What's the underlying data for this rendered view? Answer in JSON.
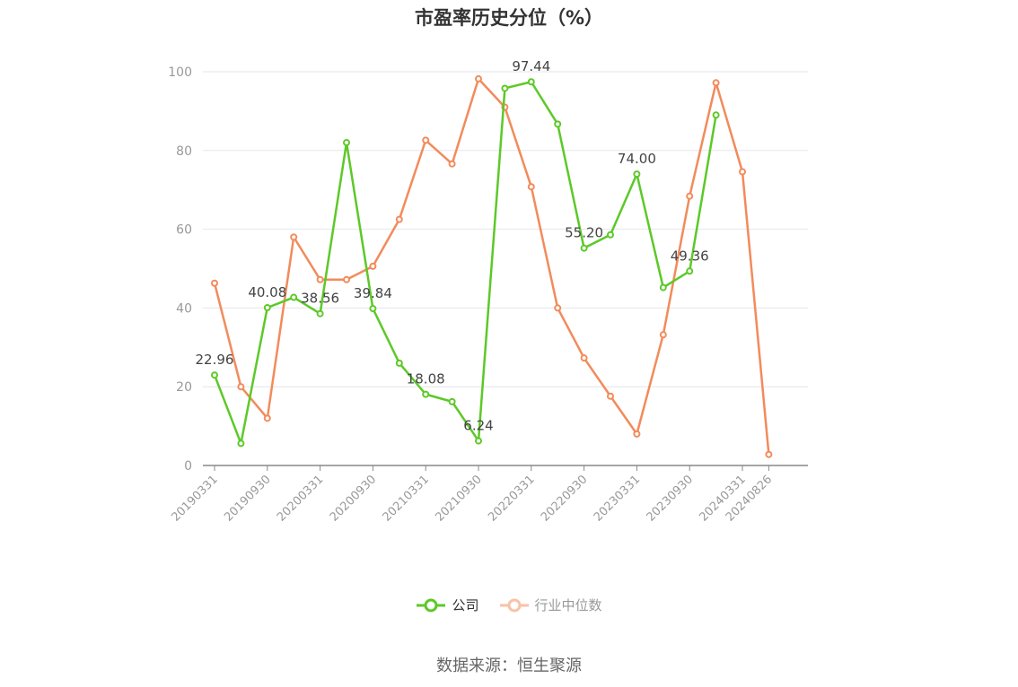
{
  "chart_data": {
    "type": "line",
    "title": "市盈率历史分位（%）",
    "ylim": [
      0,
      100
    ],
    "yticks": [
      0,
      20,
      40,
      60,
      80,
      100
    ],
    "x": [
      "20190331",
      "20190630",
      "20190930",
      "20191231",
      "20200331",
      "20200630",
      "20200930",
      "20201231",
      "20210331",
      "20210630",
      "20210930",
      "20211231",
      "20220331",
      "20220630",
      "20220930",
      "20221231",
      "20230331",
      "20230630",
      "20230930",
      "20231231",
      "20240331",
      "20240826"
    ],
    "xtick_labels": [
      "20190331",
      "20190930",
      "20200331",
      "20200930",
      "20210331",
      "20210930",
      "20220331",
      "20220930",
      "20230331",
      "20230930",
      "20240331",
      "20240826"
    ],
    "series": [
      {
        "name": "公司",
        "color": "#5cc928",
        "values": [
          22.96,
          5.6,
          40.08,
          42.7,
          38.56,
          82.0,
          39.84,
          26.0,
          18.08,
          16.2,
          6.24,
          95.8,
          97.44,
          86.7,
          55.2,
          58.6,
          74.0,
          45.2,
          49.36,
          89.0,
          null,
          null
        ],
        "labels": [
          "22.96",
          null,
          "40.08",
          null,
          "38.56",
          null,
          "39.84",
          null,
          "18.08",
          null,
          "6.24",
          null,
          "97.44",
          null,
          "55.20",
          null,
          "74.00",
          null,
          "49.36",
          null,
          null,
          null
        ]
      },
      {
        "name": "行业中位数",
        "color": "#f28b5b",
        "values": [
          46.3,
          20.0,
          12.0,
          58.0,
          47.2,
          47.2,
          50.6,
          62.5,
          82.6,
          76.6,
          98.2,
          91.0,
          70.8,
          40.0,
          27.3,
          17.6,
          8.0,
          33.2,
          68.4,
          97.2,
          74.6,
          2.8
        ],
        "labels": []
      }
    ],
    "legend": {
      "position": "bottom-center"
    },
    "grid": true
  },
  "source_text": "数据来源：恒生聚源"
}
